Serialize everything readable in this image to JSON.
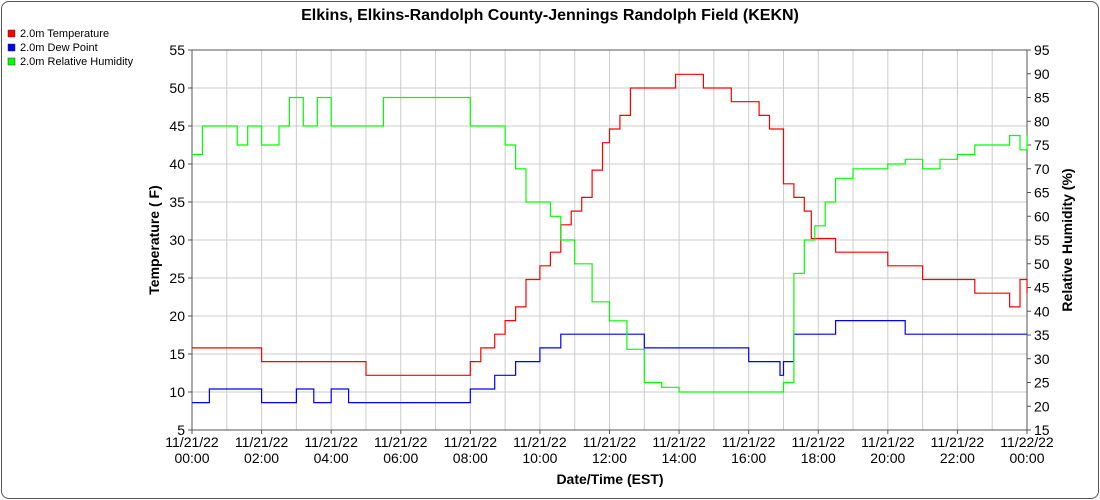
{
  "chart_data": {
    "type": "line",
    "title": "Elkins, Elkins-Randolph County-Jennings Randolph Field (KEKN)",
    "xlabel": "Date/Time (EST)",
    "ylabel_left": "Temperature ( F)",
    "ylabel_right": "Relative Humidity (%)",
    "ylim_left": [
      5,
      55
    ],
    "ylim_right": [
      15,
      95
    ],
    "yticks_left": [
      5,
      10,
      15,
      20,
      25,
      30,
      35,
      40,
      45,
      50,
      55
    ],
    "yticks_right": [
      15,
      20,
      25,
      30,
      35,
      40,
      45,
      50,
      55,
      60,
      65,
      70,
      75,
      80,
      85,
      90,
      95
    ],
    "xlim_hours": [
      0,
      24
    ],
    "grid": true,
    "legend_position": "top-left",
    "x_tick_labels": [
      [
        "11/21/22",
        "00:00"
      ],
      [
        "11/21/22",
        "02:00"
      ],
      [
        "11/21/22",
        "04:00"
      ],
      [
        "11/21/22",
        "06:00"
      ],
      [
        "11/21/22",
        "08:00"
      ],
      [
        "11/21/22",
        "10:00"
      ],
      [
        "11/21/22",
        "12:00"
      ],
      [
        "11/21/22",
        "14:00"
      ],
      [
        "11/21/22",
        "16:00"
      ],
      [
        "11/21/22",
        "18:00"
      ],
      [
        "11/21/22",
        "20:00"
      ],
      [
        "11/21/22",
        "22:00"
      ],
      [
        "11/22/22",
        "00:00"
      ]
    ],
    "series": [
      {
        "name": "2.0m Temperature",
        "color": "#ff0000",
        "axis": "left",
        "x_hours": [
          0,
          0.5,
          1.0,
          1.8,
          2.0,
          2.5,
          3.0,
          3.5,
          4.0,
          4.5,
          5.0,
          5.5,
          6.0,
          6.5,
          7.0,
          7.5,
          7.8,
          8.0,
          8.3,
          8.7,
          9.0,
          9.3,
          9.6,
          10.0,
          10.3,
          10.6,
          10.9,
          11.2,
          11.5,
          11.8,
          12.0,
          12.3,
          12.6,
          13.0,
          13.5,
          13.9,
          14.3,
          14.7,
          15.0,
          15.5,
          16.0,
          16.3,
          16.6,
          17.0,
          17.3,
          17.6,
          17.8,
          18.0,
          18.5,
          19.0,
          19.5,
          20.0,
          20.5,
          21.0,
          21.5,
          22.0,
          22.5,
          23.0,
          23.5,
          23.8,
          24.0
        ],
        "values": [
          15.8,
          15.8,
          15.8,
          15.8,
          14.0,
          14.0,
          14.0,
          14.0,
          14.0,
          14.0,
          12.2,
          12.2,
          12.2,
          12.2,
          12.2,
          12.2,
          12.2,
          14.0,
          15.8,
          17.6,
          19.4,
          21.2,
          24.8,
          26.6,
          28.4,
          32.0,
          33.8,
          35.6,
          39.2,
          42.8,
          44.6,
          46.4,
          50.0,
          50.0,
          50.0,
          51.8,
          51.8,
          50.0,
          50.0,
          48.2,
          48.2,
          46.4,
          44.6,
          37.4,
          35.6,
          33.8,
          30.2,
          30.2,
          28.4,
          28.4,
          28.4,
          26.6,
          26.6,
          24.8,
          24.8,
          24.8,
          23.0,
          23.0,
          21.2,
          24.8,
          23.0
        ]
      },
      {
        "name": "2.0m Dew Point",
        "color": "#0000ff",
        "axis": "left",
        "x_hours": [
          0,
          0.5,
          1.0,
          1.5,
          2.0,
          2.5,
          3.0,
          3.5,
          4.0,
          4.5,
          5.0,
          5.5,
          6.0,
          6.5,
          7.0,
          7.5,
          7.8,
          8.0,
          8.3,
          8.7,
          9.0,
          9.3,
          9.6,
          10.0,
          10.3,
          10.6,
          11.0,
          11.5,
          12.0,
          12.5,
          13.0,
          13.5,
          14.0,
          14.5,
          15.0,
          15.5,
          16.0,
          16.5,
          16.9,
          17.0,
          17.3,
          17.6,
          18.0,
          18.5,
          19.0,
          19.5,
          20.0,
          20.5,
          21.0,
          21.5,
          22.0,
          22.5,
          23.0,
          23.5,
          24.0
        ],
        "values": [
          8.6,
          10.4,
          10.4,
          10.4,
          8.6,
          8.6,
          10.4,
          8.6,
          10.4,
          8.6,
          8.6,
          8.6,
          8.6,
          8.6,
          8.6,
          8.6,
          8.6,
          10.4,
          10.4,
          12.2,
          12.2,
          14.0,
          14.0,
          15.8,
          15.8,
          17.6,
          17.6,
          17.6,
          17.6,
          17.6,
          15.8,
          15.8,
          15.8,
          15.8,
          15.8,
          15.8,
          14.0,
          14.0,
          12.2,
          14.0,
          17.6,
          17.6,
          17.6,
          19.4,
          19.4,
          19.4,
          19.4,
          17.6,
          17.6,
          17.6,
          17.6,
          17.6,
          17.6,
          17.6,
          17.6
        ]
      },
      {
        "name": "2.0m Relative Humidity",
        "color": "#00ff00",
        "axis": "right",
        "x_hours": [
          0,
          0.3,
          0.8,
          1.3,
          1.6,
          2.0,
          2.5,
          2.8,
          3.2,
          3.6,
          4.0,
          4.5,
          5.0,
          5.5,
          6.0,
          6.5,
          7.0,
          7.5,
          7.8,
          8.0,
          8.3,
          8.7,
          9.0,
          9.3,
          9.6,
          10.0,
          10.3,
          10.6,
          11.0,
          11.5,
          12.0,
          12.5,
          13.0,
          13.5,
          14.0,
          14.5,
          15.0,
          15.5,
          16.0,
          16.5,
          16.8,
          17.0,
          17.3,
          17.6,
          17.9,
          18.2,
          18.5,
          19.0,
          19.5,
          20.0,
          20.5,
          21.0,
          21.5,
          22.0,
          22.5,
          23.0,
          23.5,
          23.8,
          24.0
        ],
        "values": [
          73,
          79,
          79,
          75,
          79,
          75,
          79,
          85,
          79,
          85,
          79,
          79,
          79,
          85,
          85,
          85,
          85,
          85,
          85,
          79,
          79,
          79,
          75,
          70,
          63,
          63,
          60,
          55,
          50,
          42,
          38,
          32,
          25,
          24,
          23,
          23,
          23,
          23,
          23,
          23,
          23,
          25,
          48,
          55,
          58,
          63,
          68,
          70,
          70,
          71,
          72,
          70,
          72,
          73,
          75,
          75,
          77,
          74,
          77
        ]
      }
    ]
  }
}
